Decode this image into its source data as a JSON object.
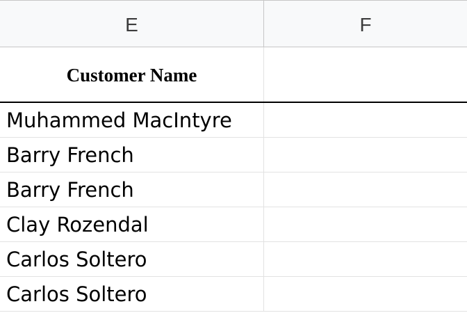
{
  "columns": [
    {
      "letter": "E"
    },
    {
      "letter": "F"
    }
  ],
  "header_row": {
    "E": "Customer Name",
    "F": ""
  },
  "rows": [
    {
      "E": "Muhammed MacIntyre",
      "F": ""
    },
    {
      "E": "Barry French",
      "F": ""
    },
    {
      "E": "Barry French",
      "F": ""
    },
    {
      "E": "Clay Rozendal",
      "F": ""
    },
    {
      "E": "Carlos Soltero",
      "F": ""
    },
    {
      "E": "Carlos Soltero",
      "F": ""
    }
  ]
}
